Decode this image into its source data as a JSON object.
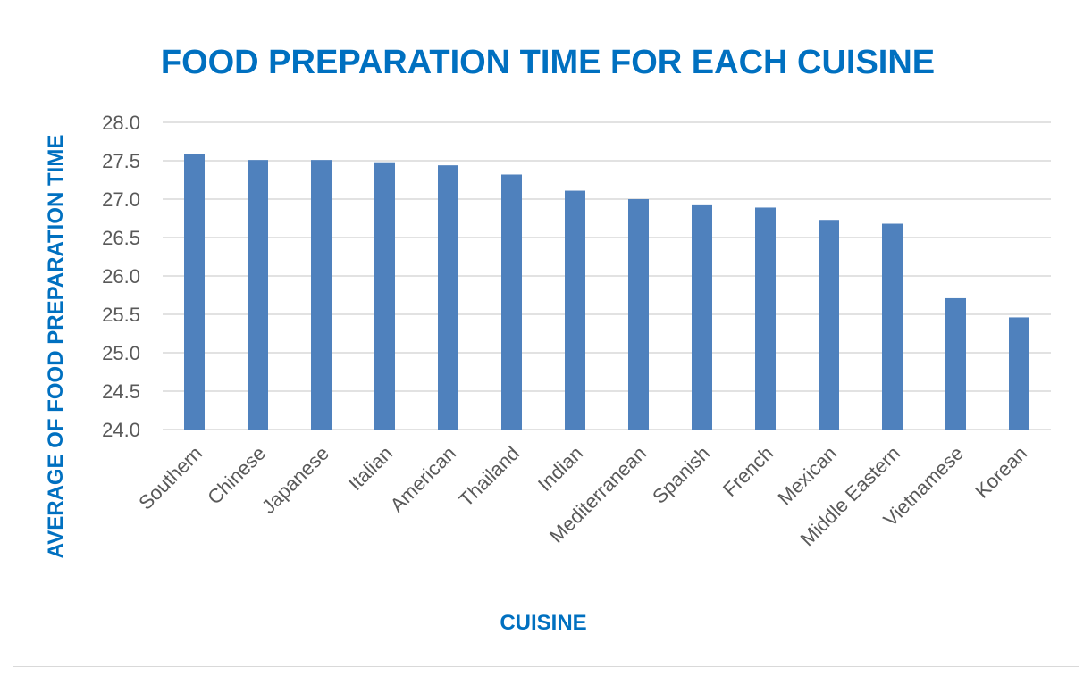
{
  "colors": {
    "accent": "#0070C0",
    "bar": "#4F81BD",
    "grid": "#D9D9D9",
    "tick_text": "#595959"
  },
  "chart_data": {
    "type": "bar",
    "title": "FOOD PREPARATION TIME FOR EACH CUISINE",
    "xlabel": "CUISINE",
    "ylabel": "AVERAGE OF FOOD PREPARATION TIME",
    "categories": [
      "Southern",
      "Chinese",
      "Japanese",
      "Italian",
      "American",
      "Thailand",
      "Indian",
      "Mediterranean",
      "Spanish",
      "French",
      "Mexican",
      "Middle Eastern",
      "Vietnamese",
      "Korean"
    ],
    "values": [
      27.59,
      27.51,
      27.51,
      27.48,
      27.44,
      27.32,
      27.11,
      27.0,
      26.92,
      26.89,
      26.73,
      26.68,
      25.71,
      25.46
    ],
    "ylim": [
      24.0,
      28.0
    ],
    "yticks": [
      "24.0",
      "24.5",
      "25.0",
      "25.5",
      "26.0",
      "26.5",
      "27.0",
      "27.5",
      "28.0"
    ],
    "grid": true,
    "legend": "none"
  }
}
